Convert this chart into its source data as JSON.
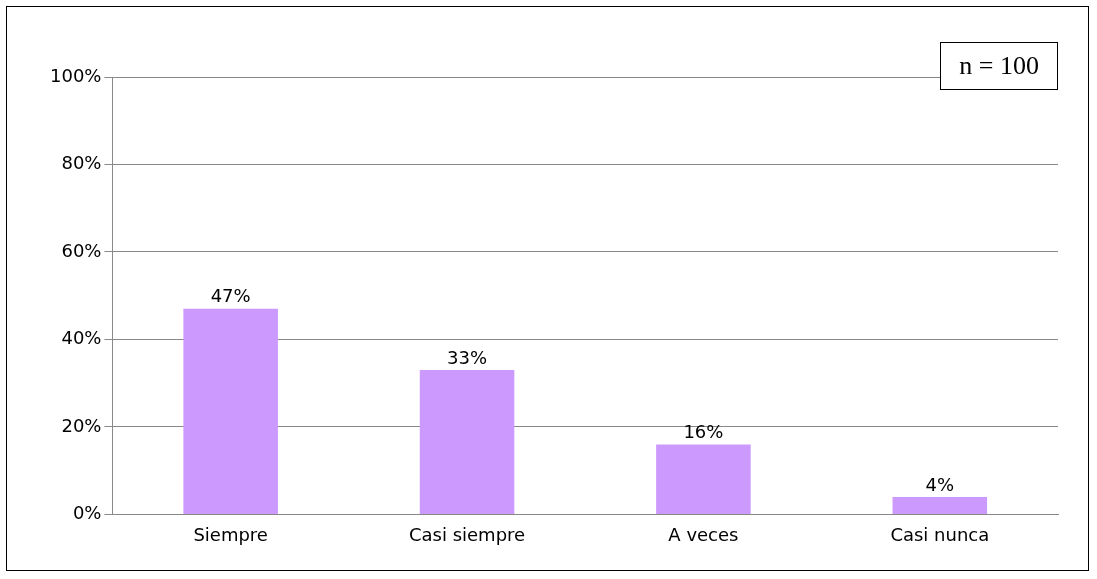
{
  "chart_data": {
    "type": "bar",
    "categories": [
      "Siempre",
      "Casi siempre",
      "A veces",
      "Casi nunca"
    ],
    "values": [
      47,
      33,
      16,
      4
    ],
    "color": "#cc99ff",
    "value_labels": [
      "47%",
      "33%",
      "16%",
      "4%"
    ],
    "ylim": [
      0,
      100
    ],
    "yticks": [
      {
        "value": 0,
        "label": "0%"
      },
      {
        "value": 20,
        "label": "20%"
      },
      {
        "value": 40,
        "label": "40%"
      },
      {
        "value": 60,
        "label": "60%"
      },
      {
        "value": 80,
        "label": "80%"
      },
      {
        "value": 100,
        "label": "100%"
      }
    ],
    "grid": "y",
    "legend": false,
    "annotations": [
      "n = 100"
    ]
  }
}
